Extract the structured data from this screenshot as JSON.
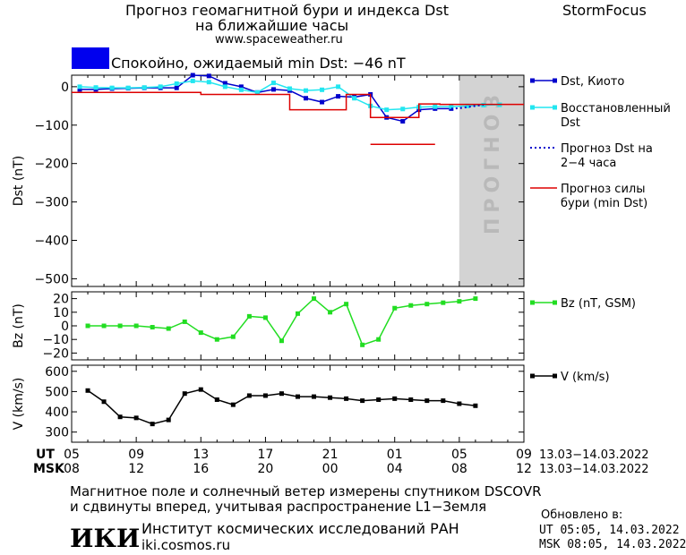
{
  "header": {
    "title_line1": "Прогноз геомагнитной бури и индекса Dst",
    "title_line2": "на ближайшие часы",
    "brand": "StormFocus",
    "site": "www.spaceweather.ru"
  },
  "status": {
    "text": "Спокойно, ожидаемый min Dst: −46 nT",
    "color": "#0000ee"
  },
  "forecast_band_label": "ПРОГНОЗ",
  "time_axis": {
    "ut_label": "UT",
    "msk_label": "MSK",
    "ut_ticks": [
      "05",
      "09",
      "13",
      "17",
      "21",
      "01",
      "05",
      "09"
    ],
    "msk_ticks": [
      "08",
      "12",
      "16",
      "20",
      "00",
      "04",
      "08",
      "12"
    ],
    "ut_range": "13.03−14.03.2022",
    "msk_range": "13.03−14.03.2022"
  },
  "footer": {
    "line1": "Магнитное поле и солнечный ветер измерены спутником DSCOVR",
    "line2": "и сдвинуты вперед, учитывая распространение L1−Земля",
    "institute": "Институт космических исследований РАН",
    "institute_site": "iki.cosmos.ru",
    "logo_text": "ИКИ",
    "updated_label": "Обновлено в:",
    "updated_ut": "UT   05:05, 14.03.2022",
    "updated_msk": "MSK 08:05, 14.03.2022"
  },
  "chart_data": [
    {
      "type": "line",
      "ylabel": "Dst (nT)",
      "ylim": [
        -520,
        30
      ],
      "xlim_hours": [
        0,
        28
      ],
      "forecast_start_hour": 24,
      "y_ticks": [
        "0",
        "−100",
        "−200",
        "−300",
        "−400",
        "−500"
      ],
      "y_tick_values": [
        0,
        -100,
        -200,
        -300,
        -400,
        -500
      ],
      "series": [
        {
          "name": "Dst, Киото",
          "color": "#0000cc",
          "style": "solid-square",
          "x": [
            0.5,
            1.5,
            2.5,
            3.5,
            4.5,
            5.5,
            6.5,
            7.5,
            8.5,
            9.5,
            10.5,
            11.5,
            12.5,
            13.5,
            14.5,
            15.5,
            16.5,
            17.5,
            18.5,
            19.5,
            20.5,
            21.5,
            22.5,
            23.5
          ],
          "values": [
            -7,
            -7,
            -5,
            -4,
            -3,
            -3,
            -3,
            30,
            28,
            9,
            0,
            -15,
            -7,
            -10,
            -30,
            -40,
            -25,
            -27,
            -20,
            -80,
            -90,
            -60,
            -57,
            -57
          ]
        },
        {
          "name": "Восстановленный Dst",
          "color": "#22e6f0",
          "style": "solid-square",
          "x": [
            0.5,
            1.5,
            2.5,
            3.5,
            4.5,
            5.5,
            6.5,
            7.5,
            8.5,
            9.5,
            10.5,
            11.5,
            12.5,
            13.5,
            14.5,
            15.5,
            16.5,
            17.5,
            18.5,
            19.5,
            20.5,
            21.5,
            22.5,
            23.5,
            24.5,
            25.5,
            26.5
          ],
          "values": [
            0,
            -2,
            -3,
            -3,
            -2,
            0,
            8,
            15,
            12,
            0,
            -8,
            -15,
            10,
            -5,
            -10,
            -8,
            0,
            -30,
            -50,
            -60,
            -58,
            -53,
            -52,
            -52,
            -50,
            -48,
            -47
          ]
        },
        {
          "name": "Прогноз Dst на 2−4 часа",
          "color": "#0000cc",
          "style": "dotted",
          "x": [
            23.5,
            24.0,
            24.5,
            25.0,
            25.5
          ],
          "values": [
            -57,
            -56,
            -53,
            -50,
            -47
          ]
        },
        {
          "name": "Прогноз силы бури (min Dst)",
          "color": "#dd0000",
          "style": "step",
          "x": [
            0,
            8,
            8,
            12,
            12,
            13.5,
            13.5,
            17,
            17,
            18.5,
            18.5,
            21.5,
            21.5,
            22.8,
            22.8,
            28
          ],
          "values": [
            -15,
            -15,
            -20,
            -20,
            -20,
            -20,
            -60,
            -60,
            -20,
            -20,
            -80,
            -80,
            -45,
            -45,
            -46,
            -46
          ]
        },
        {
          "name": "",
          "color": "#dd0000",
          "style": "segment",
          "x": [
            18.5,
            22.5
          ],
          "values": [
            -150,
            -150
          ]
        }
      ]
    },
    {
      "type": "line",
      "ylabel": "Bz (nT)",
      "ylim": [
        -25,
        25
      ],
      "xlim_hours": [
        0,
        28
      ],
      "y_ticks": [
        "20",
        "10",
        "0",
        "−10",
        "−20"
      ],
      "y_tick_values": [
        20,
        10,
        0,
        -10,
        -20
      ],
      "series": [
        {
          "name": "Bz (nT, GSM)",
          "color": "#22dd22",
          "style": "solid-square",
          "x": [
            1,
            2,
            3,
            4,
            5,
            6,
            7,
            8,
            9,
            10,
            11,
            12,
            13,
            14,
            15,
            16,
            17,
            18,
            19,
            20,
            21,
            22,
            23,
            24,
            25
          ],
          "values": [
            0,
            0,
            0,
            0,
            -1,
            -2,
            3,
            -5,
            -10,
            -8,
            7,
            6,
            -11,
            9,
            20,
            10,
            16,
            -14,
            -10,
            13,
            15,
            16,
            17,
            18,
            20
          ]
        }
      ]
    },
    {
      "type": "line",
      "ylabel": "V (km/s)",
      "ylim": [
        250,
        630
      ],
      "xlim_hours": [
        0,
        28
      ],
      "y_ticks": [
        "600",
        "500",
        "400",
        "300"
      ],
      "y_tick_values": [
        600,
        500,
        400,
        300
      ],
      "series": [
        {
          "name": "V (km/s)",
          "color": "#000000",
          "style": "solid-square",
          "x": [
            1,
            2,
            3,
            4,
            5,
            6,
            7,
            8,
            9,
            10,
            11,
            12,
            13,
            14,
            15,
            16,
            17,
            18,
            19,
            20,
            21,
            22,
            23,
            24,
            25
          ],
          "values": [
            505,
            450,
            375,
            370,
            340,
            360,
            490,
            510,
            460,
            435,
            480,
            480,
            490,
            475,
            475,
            470,
            465,
            455,
            460,
            465,
            460,
            455,
            455,
            440,
            430
          ]
        }
      ]
    }
  ]
}
